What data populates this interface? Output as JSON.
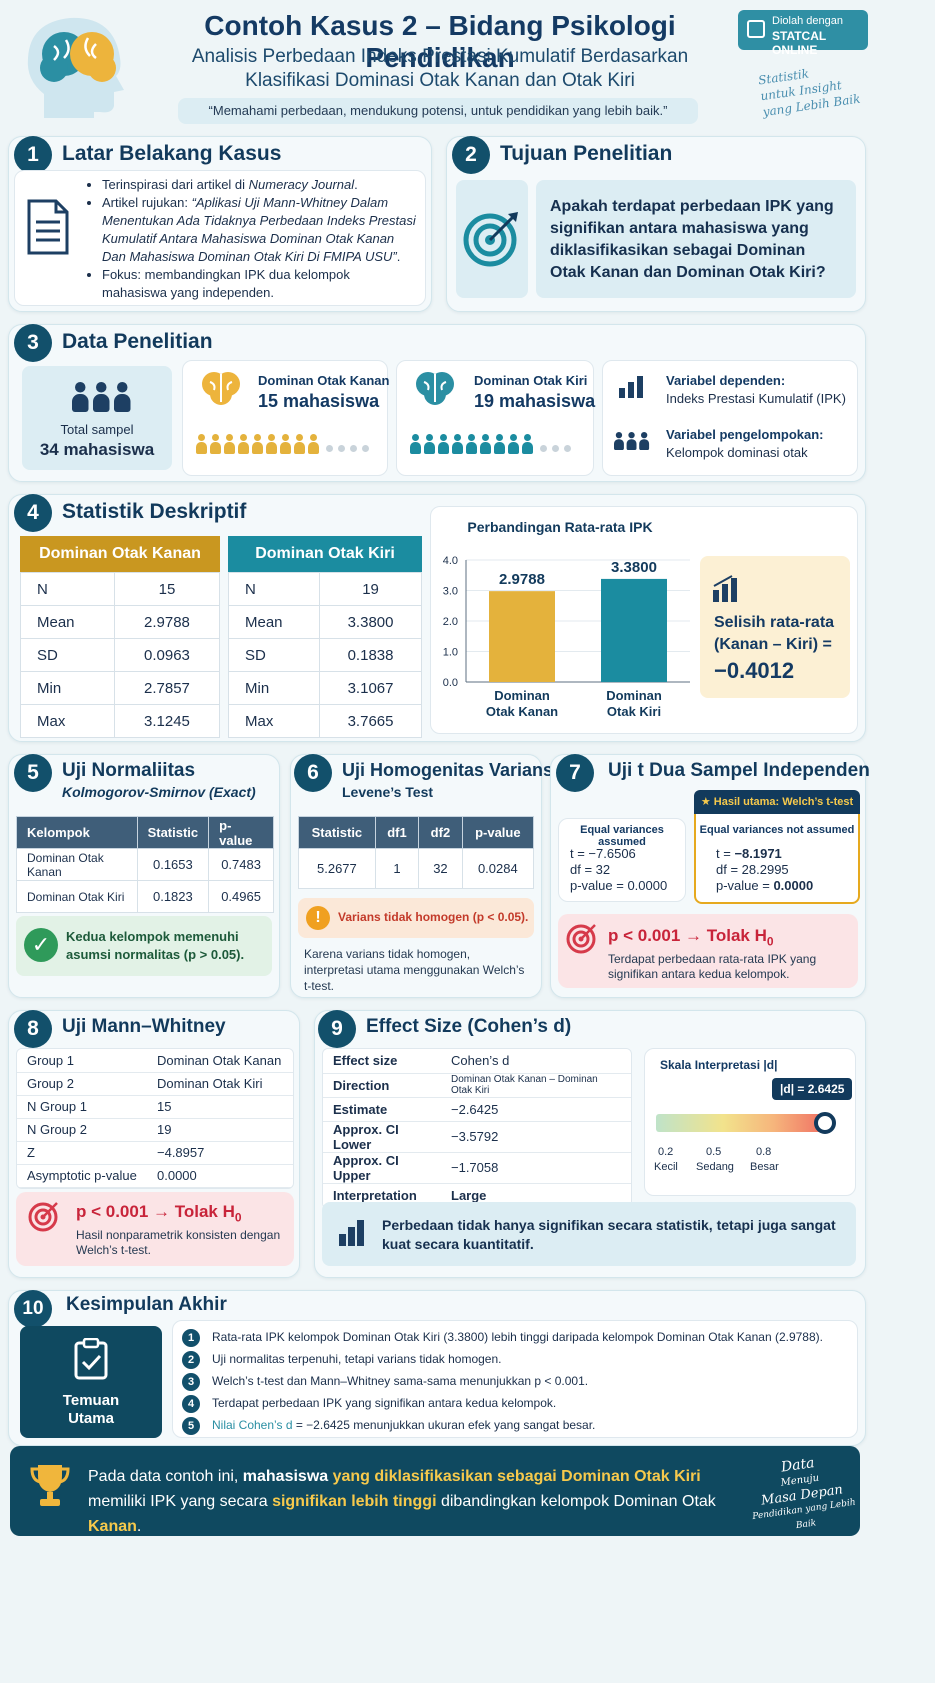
{
  "header": {
    "title": "Contoh Kasus 2 – Bidang Psikologi Pendidikan",
    "subtitle_l1": "Analisis Perbedaan Indeks Prestasi Kumulatif Berdasarkan",
    "subtitle_l2": "Klasifikasi Dominasi Otak Kanan dan Otak Kiri",
    "quote": "“Memahami perbedaan, mendukung potensi, untuk pendidikan yang lebih baik.”",
    "badge_small": "Diolah dengan",
    "badge_big": "STATCAL ONLINE",
    "script_l1": "Statistik",
    "script_l2": "untuk Insight",
    "script_l3": "yang Lebih Baik"
  },
  "s1": {
    "num": "1",
    "title": "Latar Belakang Kasus",
    "b1_pre": "Terinspirasi dari artikel di ",
    "b1_em": "Numeracy Journal",
    "b1_post": ".",
    "b2_pre": "Artikel rujukan: ",
    "b2_em": "“Aplikasi Uji Mann-Whitney Dalam Menentukan Ada Tidaknya Perbedaan Indeks Prestasi Kumulatif Antara Mahasiswa Dominan Otak Kanan Dan Mahasiswa Dominan Otak Kiri Di FMIPA USU”",
    "b2_post": ".",
    "b3": "Fokus: membandingkan IPK dua kelompok mahasiswa yang independen."
  },
  "s2": {
    "num": "2",
    "title": "Tujuan Penelitian",
    "question": "Apakah terdapat perbedaan IPK yang signifikan antara mahasiswa yang diklasifikasikan sebagai Dominan Otak Kanan dan Dominan Otak Kiri?"
  },
  "s3": {
    "num": "3",
    "title": "Data Penelitian",
    "total_label": "Total sampel",
    "total_value": "34 mahasiswa",
    "right_label": "Dominan Otak Kanan",
    "right_value": "15 mahasiswa",
    "left_label": "Dominan Otak Kiri",
    "left_value": "19 mahasiswa",
    "dep_label": "Variabel dependen:",
    "dep_value": "Indeks Prestasi Kumulatif (IPK)",
    "grp_label": "Variabel pengelompokan:",
    "grp_value": "Kelompok dominasi otak"
  },
  "s4": {
    "num": "4",
    "title": "Statistik Deskriptif",
    "kanan": {
      "header": "Dominan Otak Kanan",
      "rows": [
        [
          "N",
          "15"
        ],
        [
          "Mean",
          "2.9788"
        ],
        [
          "SD",
          "0.0963"
        ],
        [
          "Min",
          "2.7857"
        ],
        [
          "Max",
          "3.1245"
        ]
      ]
    },
    "kiri": {
      "header": "Dominan Otak Kiri",
      "rows": [
        [
          "N",
          "19"
        ],
        [
          "Mean",
          "3.3800"
        ],
        [
          "SD",
          "0.1838"
        ],
        [
          "Min",
          "3.1067"
        ],
        [
          "Max",
          "3.7665"
        ]
      ]
    },
    "diff_l1": "Selisih rata-rata",
    "diff_l2": "(Kanan – Kiri) =",
    "diff_value": "−0.4012"
  },
  "chart_data": {
    "type": "bar",
    "title": "Perbandingan Rata-rata IPK",
    "categories": [
      "Dominan Otak Kanan",
      "Dominan Otak Kiri"
    ],
    "cat_l1": [
      "Dominan",
      "Dominan"
    ],
    "cat_l2": [
      "Otak Kanan",
      "Otak Kiri"
    ],
    "values": [
      2.9788,
      3.38
    ],
    "value_labels": [
      "2.9788",
      "3.3800"
    ],
    "ylim": [
      0,
      4
    ],
    "yticks": [
      "0.0",
      "1.0",
      "2.0",
      "3.0",
      "4.0"
    ],
    "colors": [
      "#e4b23c",
      "#1b8ca0"
    ]
  },
  "s5": {
    "num": "5",
    "title": "Uji Normaliitas",
    "sub": "Kolmogorov-Smirnov (Exact)",
    "headers": [
      "Kelompok",
      "Statistic",
      "p-value"
    ],
    "rows": [
      [
        "Dominan Otak Kanan",
        "0.1653",
        "0.7483"
      ],
      [
        "Dominan Otak Kiri",
        "0.1823",
        "0.4965"
      ]
    ],
    "note": "Kedua kelompok memenuhi asumsi normalitas (p > 0.05)."
  },
  "s6": {
    "num": "6",
    "title": "Uji Homogenitas Varians",
    "sub": "Levene’s Test",
    "headers": [
      "Statistic",
      "df1",
      "df2",
      "p-value"
    ],
    "row": [
      "5.2677",
      "1",
      "32",
      "0.0284"
    ],
    "warn": "Varians tidak homogen (p < 0.05).",
    "note": "Karena varians tidak homogen, interpretasi utama menggunakan Welch’s t-test."
  },
  "s7": {
    "num": "7",
    "title": "Uji t Dua Sampel Independen",
    "main_badge": "Hasil utama: Welch’s t-test",
    "eq_title": "Equal variances assumed",
    "eq_t": "t = −7.6506",
    "eq_df": "df = 32",
    "eq_p": "p-value = 0.0000",
    "neq_title": "Equal variances not assumed",
    "neq_t_pre": "t = ",
    "neq_t": "−8.1971",
    "neq_df": "df = 28.2995",
    "neq_p_pre": "p-value = ",
    "neq_p": "0.0000",
    "res_title": "p < 0.001 → Tolak H",
    "res_sub": "0",
    "res_text": "Terdapat perbedaan rata-rata IPK yang signifikan antara kedua kelompok."
  },
  "s8": {
    "num": "8",
    "title": "Uji Mann–Whitney",
    "rows": [
      [
        "Group 1",
        "Dominan Otak Kanan"
      ],
      [
        "Group 2",
        "Dominan Otak Kiri"
      ],
      [
        "N Group 1",
        "15"
      ],
      [
        "N Group 2",
        "19"
      ],
      [
        "Z",
        "−4.8957"
      ],
      [
        "Asymptotic p-value",
        "0.0000"
      ]
    ],
    "res_title": "p < 0.001 → Tolak H",
    "res_sub": "0",
    "res_text": "Hasil nonparametrik konsisten dengan Welch’s t-test."
  },
  "s9": {
    "num": "9",
    "title": "Effect Size (Cohen’s d)",
    "rows": [
      [
        "Effect size",
        "Cohen’s d"
      ],
      [
        "Direction",
        "Dominan Otak Kanan – Dominan Otak Kiri"
      ],
      [
        "Estimate",
        "−2.6425"
      ],
      [
        "Approx. CI Lower",
        "−3.5792"
      ],
      [
        "Approx. CI Upper",
        "−1.7058"
      ],
      [
        "Interpretation",
        "Large"
      ]
    ],
    "scale_title": "Skala Interpretasi |d|",
    "marker": "|d| = 2.6425",
    "ticks": [
      "0.2",
      "0.5",
      "0.8"
    ],
    "tick_labels": [
      "Kecil",
      "Sedang",
      "Besar"
    ],
    "note": "Perbedaan tidak hanya signifikan secara statistik, tetapi juga sangat kuat secara kuantitatif."
  },
  "s10": {
    "num": "10",
    "title": "Kesimpulan Akhir",
    "key_l1": "Temuan",
    "key_l2": "Utama",
    "items": [
      "Rata-rata IPK kelompok Dominan Otak Kiri (3.3800) lebih tinggi daripada kelompok Dominan Otak Kanan (2.9788).",
      "Uji normalitas terpenuhi, tetapi varians tidak homogen.",
      "Welch’s t-test dan Mann–Whitney sama-sama menunjukkan p < 0.001.",
      "Terdapat perbedaan IPK yang signifikan antara kedua kelompok."
    ],
    "item5_em": "Nilai Cohen’s d",
    "item5_rest": " = −2.6425 menunjukkan ukuran efek yang sangat besar."
  },
  "footer": {
    "p1": "Pada data contoh ini, ",
    "p2": "mahasiswa ",
    "p3": "yang diklasifikasikan sebagai ",
    "p4": "Dominan Otak Kiri",
    "p5": "memiliki IPK yang secara ",
    "p6": "signifikan lebih tinggi",
    "p7": " dibandingkan kelompok Dominan Otak ",
    "p8": "Kanan",
    "p9": ".",
    "s1": "Data",
    "s2": "Menuju",
    "s3": "Masa Depan",
    "s4": "Pendidikan yang Lebih Baik"
  }
}
